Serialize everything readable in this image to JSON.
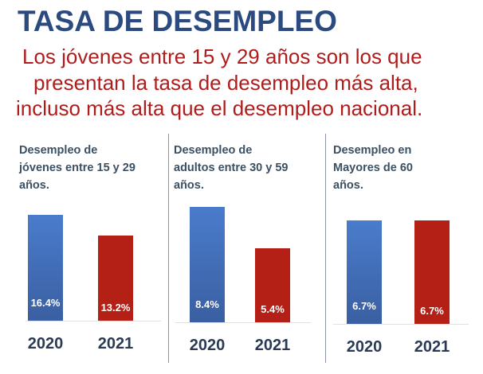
{
  "title": "TASA DE DESEMPLEO",
  "subtitle_lines": [
    "Los jóvenes entre 15 y 29 años son los que",
    "presentan la tasa de desempleo más alta,",
    "incluso más alta que el desempleo nacional."
  ],
  "colors": {
    "title": "#2b4a80",
    "subtitle": "#b01c1c",
    "bar_2020": "#4a7ccc",
    "bar_2021": "#b52016"
  },
  "chart_data": [
    {
      "type": "bar",
      "title_lines": [
        "Desempleo de",
        "jóvenes entre 15 y 29",
        "años."
      ],
      "categories": [
        "2020",
        "2021"
      ],
      "values": [
        16.4,
        13.2
      ],
      "labels": [
        "16.4%",
        "13.2%"
      ],
      "unit": "%"
    },
    {
      "type": "bar",
      "title_lines": [
        "Desempleo de",
        "adultos entre 30 y 59",
        "años."
      ],
      "categories": [
        "2020",
        "2021"
      ],
      "values": [
        8.4,
        5.4
      ],
      "labels": [
        "8.4%",
        "5.4%"
      ],
      "unit": "%"
    },
    {
      "type": "bar",
      "title_lines": [
        "Desempleo en",
        "Mayores de 60",
        "años."
      ],
      "categories": [
        "2020",
        "2021"
      ],
      "values": [
        6.7,
        6.7
      ],
      "labels": [
        "6.7%",
        "6.7%"
      ],
      "unit": "%"
    }
  ]
}
